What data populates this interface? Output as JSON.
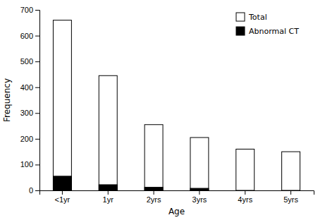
{
  "chart_data": {
    "type": "bar",
    "categories": [
      "<1yr",
      "1yr",
      "2yrs",
      "3yrs",
      "4yrs",
      "5yrs"
    ],
    "series": [
      {
        "name": "Total",
        "color": "#ffffff",
        "values": [
          660,
          445,
          255,
          205,
          160,
          150
        ]
      },
      {
        "name": "Abnormal CT",
        "color": "#000000",
        "values": [
          55,
          22,
          12,
          8,
          0,
          0
        ]
      }
    ],
    "xlabel": "Age",
    "ylabel": "Frequency",
    "ylim": [
      0,
      700
    ],
    "yticks": [
      0,
      100,
      200,
      300,
      400,
      500,
      600,
      700
    ],
    "legend": "upper right"
  }
}
